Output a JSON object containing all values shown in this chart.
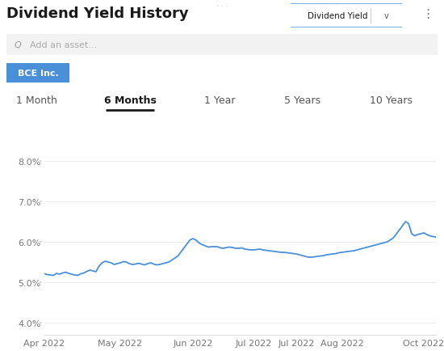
{
  "title": "Dividend Yield History",
  "dropdown_label": "Dividend Yield",
  "search_placeholder": "Add an asset...",
  "badge_label": "BCE Inc.",
  "badge_color": "#4a90d9",
  "tabs": [
    "1 Month",
    "6 Months",
    "1 Year",
    "5 Years",
    "10 Years"
  ],
  "active_tab": "6 Months",
  "yticks": [
    4.0,
    5.0,
    6.0,
    7.0,
    8.0
  ],
  "ylim": [
    3.7,
    8.5
  ],
  "xtick_labels": [
    "Apr 2022",
    "May 2022",
    "Jun 2022",
    "Jul 2022",
    "Jul 2022",
    "Aug 2022",
    "Oct 2022"
  ],
  "line_color": "#4a90d9",
  "line_width": 1.3,
  "background_color": "#ffffff",
  "chart_bg": "#ffffff",
  "grid_color": "#e8e8e8",
  "y_data": [
    5.21,
    5.19,
    5.18,
    5.17,
    5.22,
    5.2,
    5.23,
    5.25,
    5.22,
    5.2,
    5.18,
    5.17,
    5.21,
    5.23,
    5.27,
    5.3,
    5.28,
    5.26,
    5.4,
    5.48,
    5.52,
    5.5,
    5.48,
    5.44,
    5.46,
    5.48,
    5.51,
    5.5,
    5.46,
    5.44,
    5.45,
    5.47,
    5.45,
    5.43,
    5.46,
    5.48,
    5.45,
    5.43,
    5.44,
    5.46,
    5.48,
    5.5,
    5.55,
    5.6,
    5.65,
    5.75,
    5.85,
    5.95,
    6.05,
    6.08,
    6.04,
    5.97,
    5.93,
    5.9,
    5.87,
    5.88,
    5.88,
    5.88,
    5.85,
    5.84,
    5.86,
    5.87,
    5.86,
    5.84,
    5.84,
    5.85,
    5.82,
    5.81,
    5.8,
    5.8,
    5.81,
    5.82,
    5.8,
    5.79,
    5.78,
    5.77,
    5.76,
    5.75,
    5.74,
    5.74,
    5.73,
    5.72,
    5.71,
    5.7,
    5.68,
    5.66,
    5.64,
    5.62,
    5.62,
    5.63,
    5.64,
    5.65,
    5.66,
    5.68,
    5.69,
    5.7,
    5.71,
    5.73,
    5.74,
    5.75,
    5.76,
    5.77,
    5.78,
    5.8,
    5.82,
    5.84,
    5.86,
    5.88,
    5.9,
    5.92,
    5.94,
    5.96,
    5.98,
    6.0,
    6.05,
    6.1,
    6.2,
    6.3,
    6.4,
    6.5,
    6.45,
    6.2,
    6.15,
    6.18,
    6.2,
    6.22,
    6.18,
    6.15,
    6.13,
    6.12
  ],
  "title_fontsize": 13,
  "tick_fontsize": 8,
  "tab_fontsize": 9
}
